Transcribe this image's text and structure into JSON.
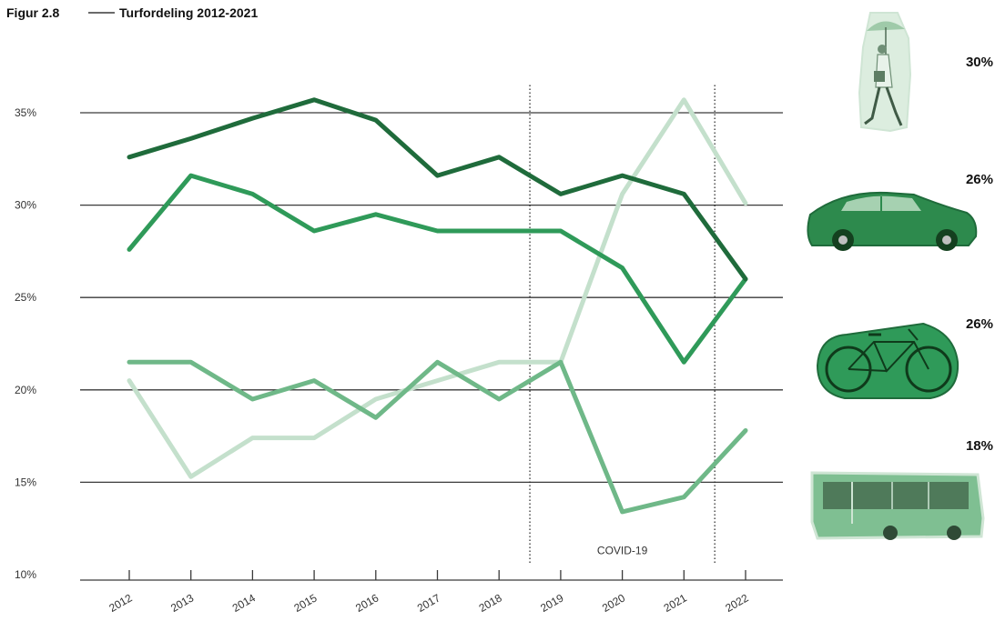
{
  "chart_data": {
    "type": "line",
    "title": "Figur 2.8",
    "subtitle": "Turfordeling 2012-2021",
    "x": [
      "2012",
      "2013",
      "2014",
      "2015",
      "2016",
      "2017",
      "2018",
      "2019",
      "2020",
      "2021",
      "2022"
    ],
    "ylim": [
      10,
      36
    ],
    "yticks": [
      10,
      15,
      20,
      25,
      30,
      35
    ],
    "ytick_labels": [
      "10%",
      "15%",
      "20%",
      "25%",
      "30%",
      "35%"
    ],
    "grid": "horizontal",
    "annotation": "COVID-19",
    "covid_x_range": [
      "2018",
      "2021"
    ],
    "series": [
      {
        "color": "#1f6b3b",
        "width": 5,
        "values": [
          32.6,
          33.6,
          34.7,
          35.7,
          34.6,
          31.6,
          32.6,
          30.6,
          31.6,
          30.6,
          26.0
        ]
      },
      {
        "color": "#2f9a59",
        "width": 5,
        "values": [
          27.6,
          31.6,
          30.6,
          28.6,
          29.5,
          28.6,
          28.6,
          28.6,
          26.6,
          21.5,
          26.0
        ]
      },
      {
        "color": "#6fb888",
        "width": 5,
        "values": [
          21.5,
          21.5,
          19.5,
          20.5,
          18.5,
          21.5,
          19.5,
          21.5,
          13.4,
          14.2,
          17.8
        ]
      },
      {
        "color": "#c4e0cc",
        "width": 5,
        "values": [
          20.5,
          15.3,
          17.4,
          17.4,
          19.5,
          20.5,
          21.5,
          21.5,
          30.6,
          35.7,
          30.1
        ]
      }
    ],
    "legend": [
      {
        "icon": "pedestrian-umbrella-icon",
        "value": "30%"
      },
      {
        "icon": "car-icon",
        "value": "26%"
      },
      {
        "icon": "bicycle-icon",
        "value": "26%"
      },
      {
        "icon": "bus-icon",
        "value": "18%"
      }
    ]
  }
}
